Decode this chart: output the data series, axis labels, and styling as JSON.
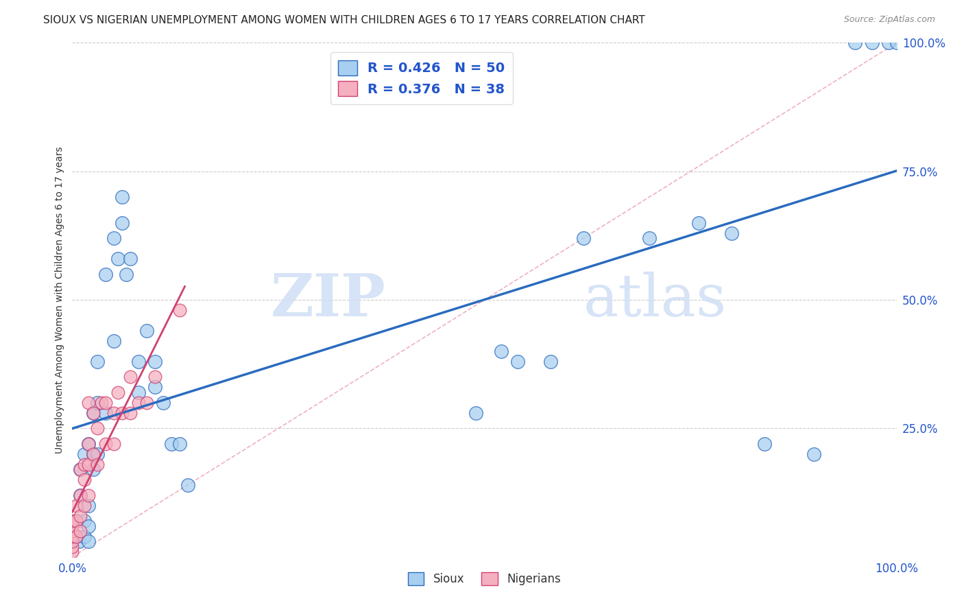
{
  "title": "SIOUX VS NIGERIAN UNEMPLOYMENT AMONG WOMEN WITH CHILDREN AGES 6 TO 17 YEARS CORRELATION CHART",
  "source": "Source: ZipAtlas.com",
  "ylabel": "Unemployment Among Women with Children Ages 6 to 17 years",
  "sioux_R": 0.426,
  "sioux_N": 50,
  "nigerian_R": 0.376,
  "nigerian_N": 38,
  "sioux_color": "#a8cff0",
  "nigerian_color": "#f5b0c0",
  "sioux_line_color": "#2a6bbf",
  "nigerian_line_color": "#d04070",
  "diagonal_color": "#f0b0c0",
  "background_color": "#ffffff",
  "watermark_text": "ZIPatlas",
  "watermark_zip": "ZIP",
  "watermark_atlas": "atlas",
  "xlim": [
    0,
    1.0
  ],
  "ylim": [
    0,
    1.0
  ],
  "xtick_positions": [
    0.0,
    0.25,
    0.5,
    0.75,
    1.0
  ],
  "xticklabels": [
    "0.0%",
    "",
    "",
    "",
    "100.0%"
  ],
  "ytick_positions": [
    0.0,
    0.25,
    0.5,
    0.75,
    1.0
  ],
  "yticklabels_right": [
    "",
    "25.0%",
    "50.0%",
    "75.0%",
    "100.0%"
  ],
  "sioux_x": [
    0.005,
    0.005,
    0.008,
    0.01,
    0.01,
    0.015,
    0.015,
    0.015,
    0.02,
    0.02,
    0.02,
    0.02,
    0.025,
    0.025,
    0.025,
    0.03,
    0.03,
    0.03,
    0.04,
    0.04,
    0.05,
    0.05,
    0.055,
    0.06,
    0.06,
    0.065,
    0.07,
    0.08,
    0.08,
    0.09,
    0.1,
    0.1,
    0.11,
    0.12,
    0.13,
    0.14,
    0.49,
    0.52,
    0.54,
    0.58,
    0.62,
    0.7,
    0.76,
    0.8,
    0.84,
    0.9,
    0.95,
    0.97,
    0.99,
    1.0
  ],
  "sioux_y": [
    0.04,
    0.07,
    0.03,
    0.12,
    0.17,
    0.04,
    0.07,
    0.2,
    0.03,
    0.06,
    0.1,
    0.22,
    0.17,
    0.2,
    0.28,
    0.2,
    0.3,
    0.38,
    0.28,
    0.55,
    0.42,
    0.62,
    0.58,
    0.65,
    0.7,
    0.55,
    0.58,
    0.32,
    0.38,
    0.44,
    0.33,
    0.38,
    0.3,
    0.22,
    0.22,
    0.14,
    0.28,
    0.4,
    0.38,
    0.38,
    0.62,
    0.62,
    0.65,
    0.63,
    0.22,
    0.2,
    1.0,
    1.0,
    1.0,
    1.0
  ],
  "nigerian_x": [
    0.0,
    0.0,
    0.0,
    0.0,
    0.0,
    0.0,
    0.0,
    0.005,
    0.005,
    0.005,
    0.01,
    0.01,
    0.01,
    0.01,
    0.015,
    0.015,
    0.015,
    0.02,
    0.02,
    0.02,
    0.02,
    0.025,
    0.025,
    0.03,
    0.03,
    0.035,
    0.04,
    0.04,
    0.05,
    0.05,
    0.055,
    0.06,
    0.07,
    0.07,
    0.08,
    0.09,
    0.1,
    0.13
  ],
  "nigerian_y": [
    0.01,
    0.02,
    0.03,
    0.04,
    0.05,
    0.06,
    0.07,
    0.04,
    0.07,
    0.1,
    0.05,
    0.08,
    0.12,
    0.17,
    0.1,
    0.15,
    0.18,
    0.12,
    0.18,
    0.22,
    0.3,
    0.2,
    0.28,
    0.18,
    0.25,
    0.3,
    0.22,
    0.3,
    0.22,
    0.28,
    0.32,
    0.28,
    0.28,
    0.35,
    0.3,
    0.3,
    0.35,
    0.48
  ],
  "title_fontsize": 11,
  "source_fontsize": 9,
  "tick_fontsize": 12,
  "legend_fontsize": 14,
  "ylabel_fontsize": 10
}
